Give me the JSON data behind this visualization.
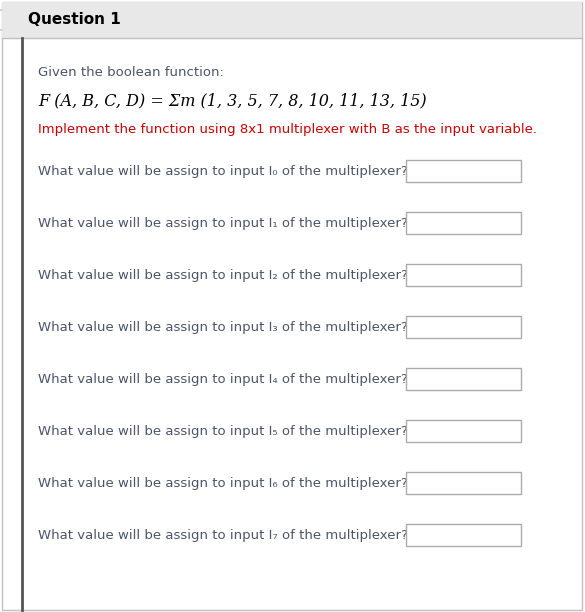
{
  "title": "Question 1",
  "title_bg": "#e8e8e8",
  "title_color": "#000000",
  "title_fontsize": 11,
  "bg_color": "#ffffff",
  "border_color": "#c0c0c0",
  "left_bar_color": "#555555",
  "intro_text": "Given the boolean function:",
  "function_text": "F (A, B, C, D) = Σm (1, 3, 5, 7, 8, 10, 11, 13, 15)",
  "implement_text": "Implement the function using 8x1 multiplexer with B as the input variable.",
  "implement_color": "#cc0000",
  "question_prefix": "What value will be assign to input I",
  "question_suffix": " of the multiplexer?",
  "subscripts": [
    "₀",
    "₁",
    "₂",
    "₃",
    "₄",
    "₅",
    "₆",
    "₇"
  ],
  "question_color": "#4a5568",
  "text_fontsize": 9.5,
  "intro_fontsize": 9.5,
  "function_fontsize": 11.5,
  "implement_fontsize": 9.5,
  "box_facecolor": "#ffffff",
  "box_edgecolor": "#aaaaaa"
}
